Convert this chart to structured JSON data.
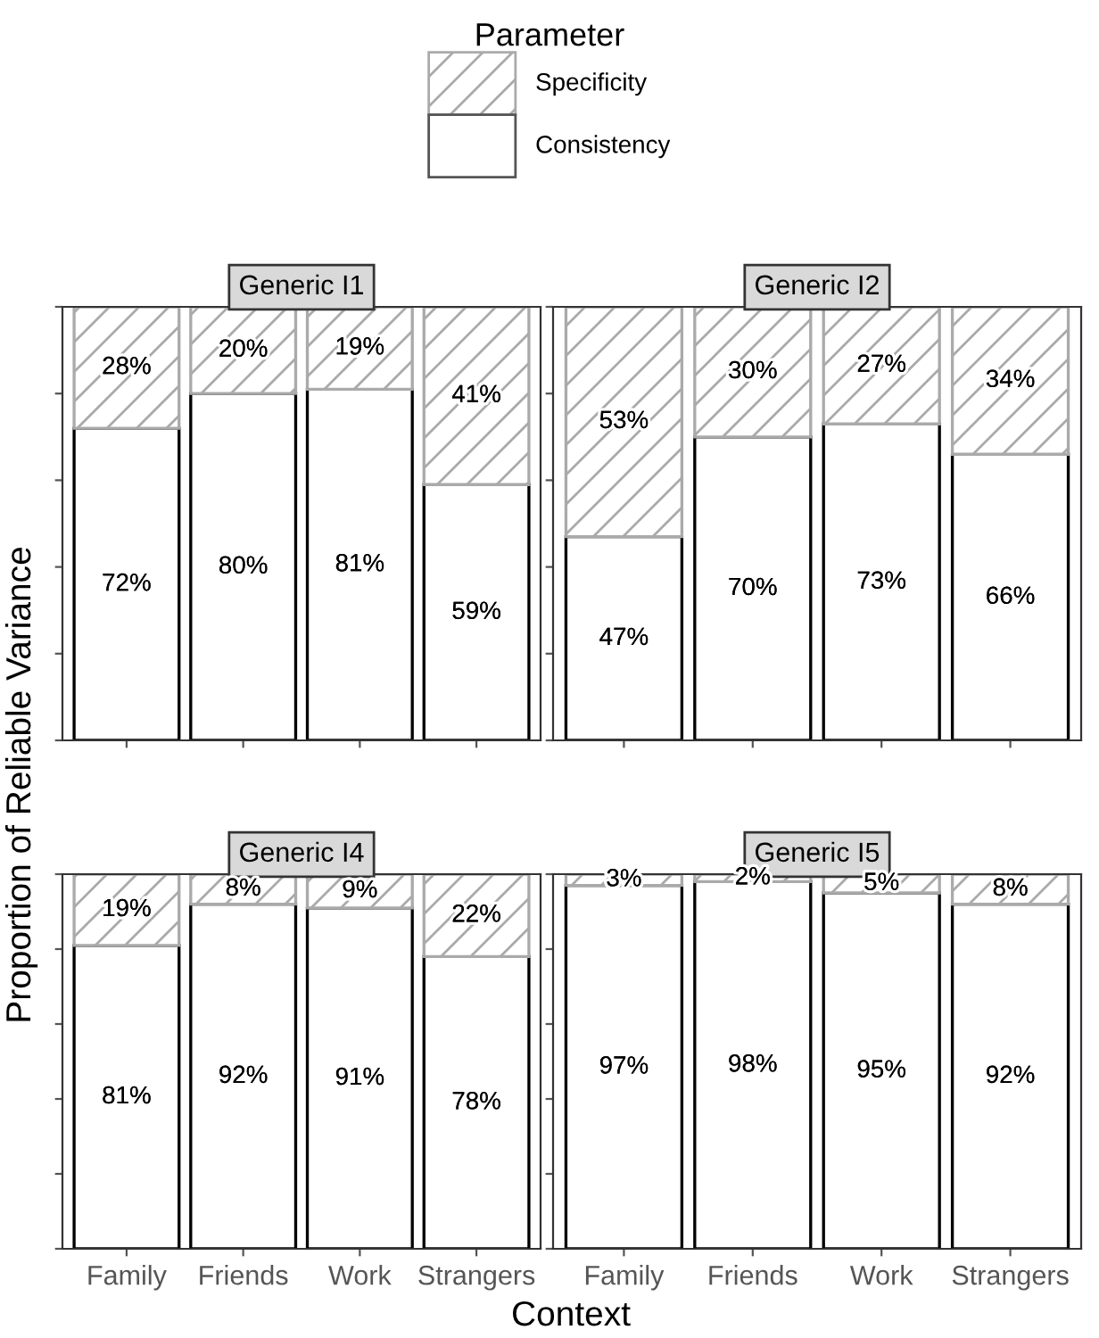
{
  "chart_data": [
    {
      "type": "bar",
      "stacked": true,
      "title": "Generic I1",
      "ylabel": "Proportion of Reliable Variance",
      "legend": "top",
      "legend_title": "Parameter",
      "categories": [
        null,
        null,
        null,
        null
      ],
      "tick_labels": false,
      "series": [
        {
          "name": "Consistency",
          "color": "#ffffff",
          "values": [
            72,
            80,
            81,
            59
          ],
          "value_labels": [
            "72%",
            "80%",
            "81%",
            "59%"
          ]
        },
        {
          "name": "Specificity",
          "color": "#aaaaaa",
          "values": [
            28,
            20,
            19,
            41
          ],
          "value_labels": [
            "28%",
            "20%",
            "19%",
            "41%"
          ]
        }
      ]
    },
    {
      "type": "bar",
      "stacked": true,
      "title": "Generic I2",
      "categories": [
        null,
        null,
        null,
        null
      ],
      "tick_labels": false,
      "series": [
        {
          "color": "#ffffff",
          "values": [
            47,
            70,
            73,
            66
          ],
          "value_labels": [
            "47%",
            "70%",
            "73%",
            "66%"
          ]
        },
        {
          "color": "#aaaaaa",
          "values": [
            53,
            30,
            27,
            34
          ],
          "value_labels": [
            "53%",
            "30%",
            "27%",
            "34%"
          ]
        }
      ]
    },
    {
      "type": "bar",
      "stacked": true,
      "title": "Generic I4",
      "xlabel": "Context",
      "categories": [
        "Family",
        "Friends",
        "Work",
        "Strangers"
      ],
      "tick_labels": "x",
      "series": [
        {
          "color": "#ffffff",
          "values": [
            81,
            92,
            91,
            78
          ],
          "value_labels": [
            "81%",
            "92%",
            "91%",
            "78%"
          ]
        },
        {
          "color": "#aaaaaa",
          "values": [
            19,
            8,
            9,
            22
          ],
          "value_labels": [
            "19%",
            "8%",
            "9%",
            "22%"
          ]
        }
      ]
    },
    {
      "type": "bar",
      "stacked": true,
      "title": "Generic I5",
      "categories": [
        "Family",
        "Friends",
        "Work",
        "Strangers"
      ],
      "tick_labels": "x",
      "series": [
        {
          "color": "#ffffff",
          "values": [
            97,
            98,
            95,
            92
          ],
          "value_labels": [
            "97%",
            "98%",
            "95%",
            "92%"
          ]
        },
        {
          "color": "#aaaaaa",
          "values": [
            3,
            2,
            5,
            8
          ],
          "value_labels": [
            "3%",
            "2%",
            "5%",
            "8%"
          ]
        }
      ]
    }
  ]
}
